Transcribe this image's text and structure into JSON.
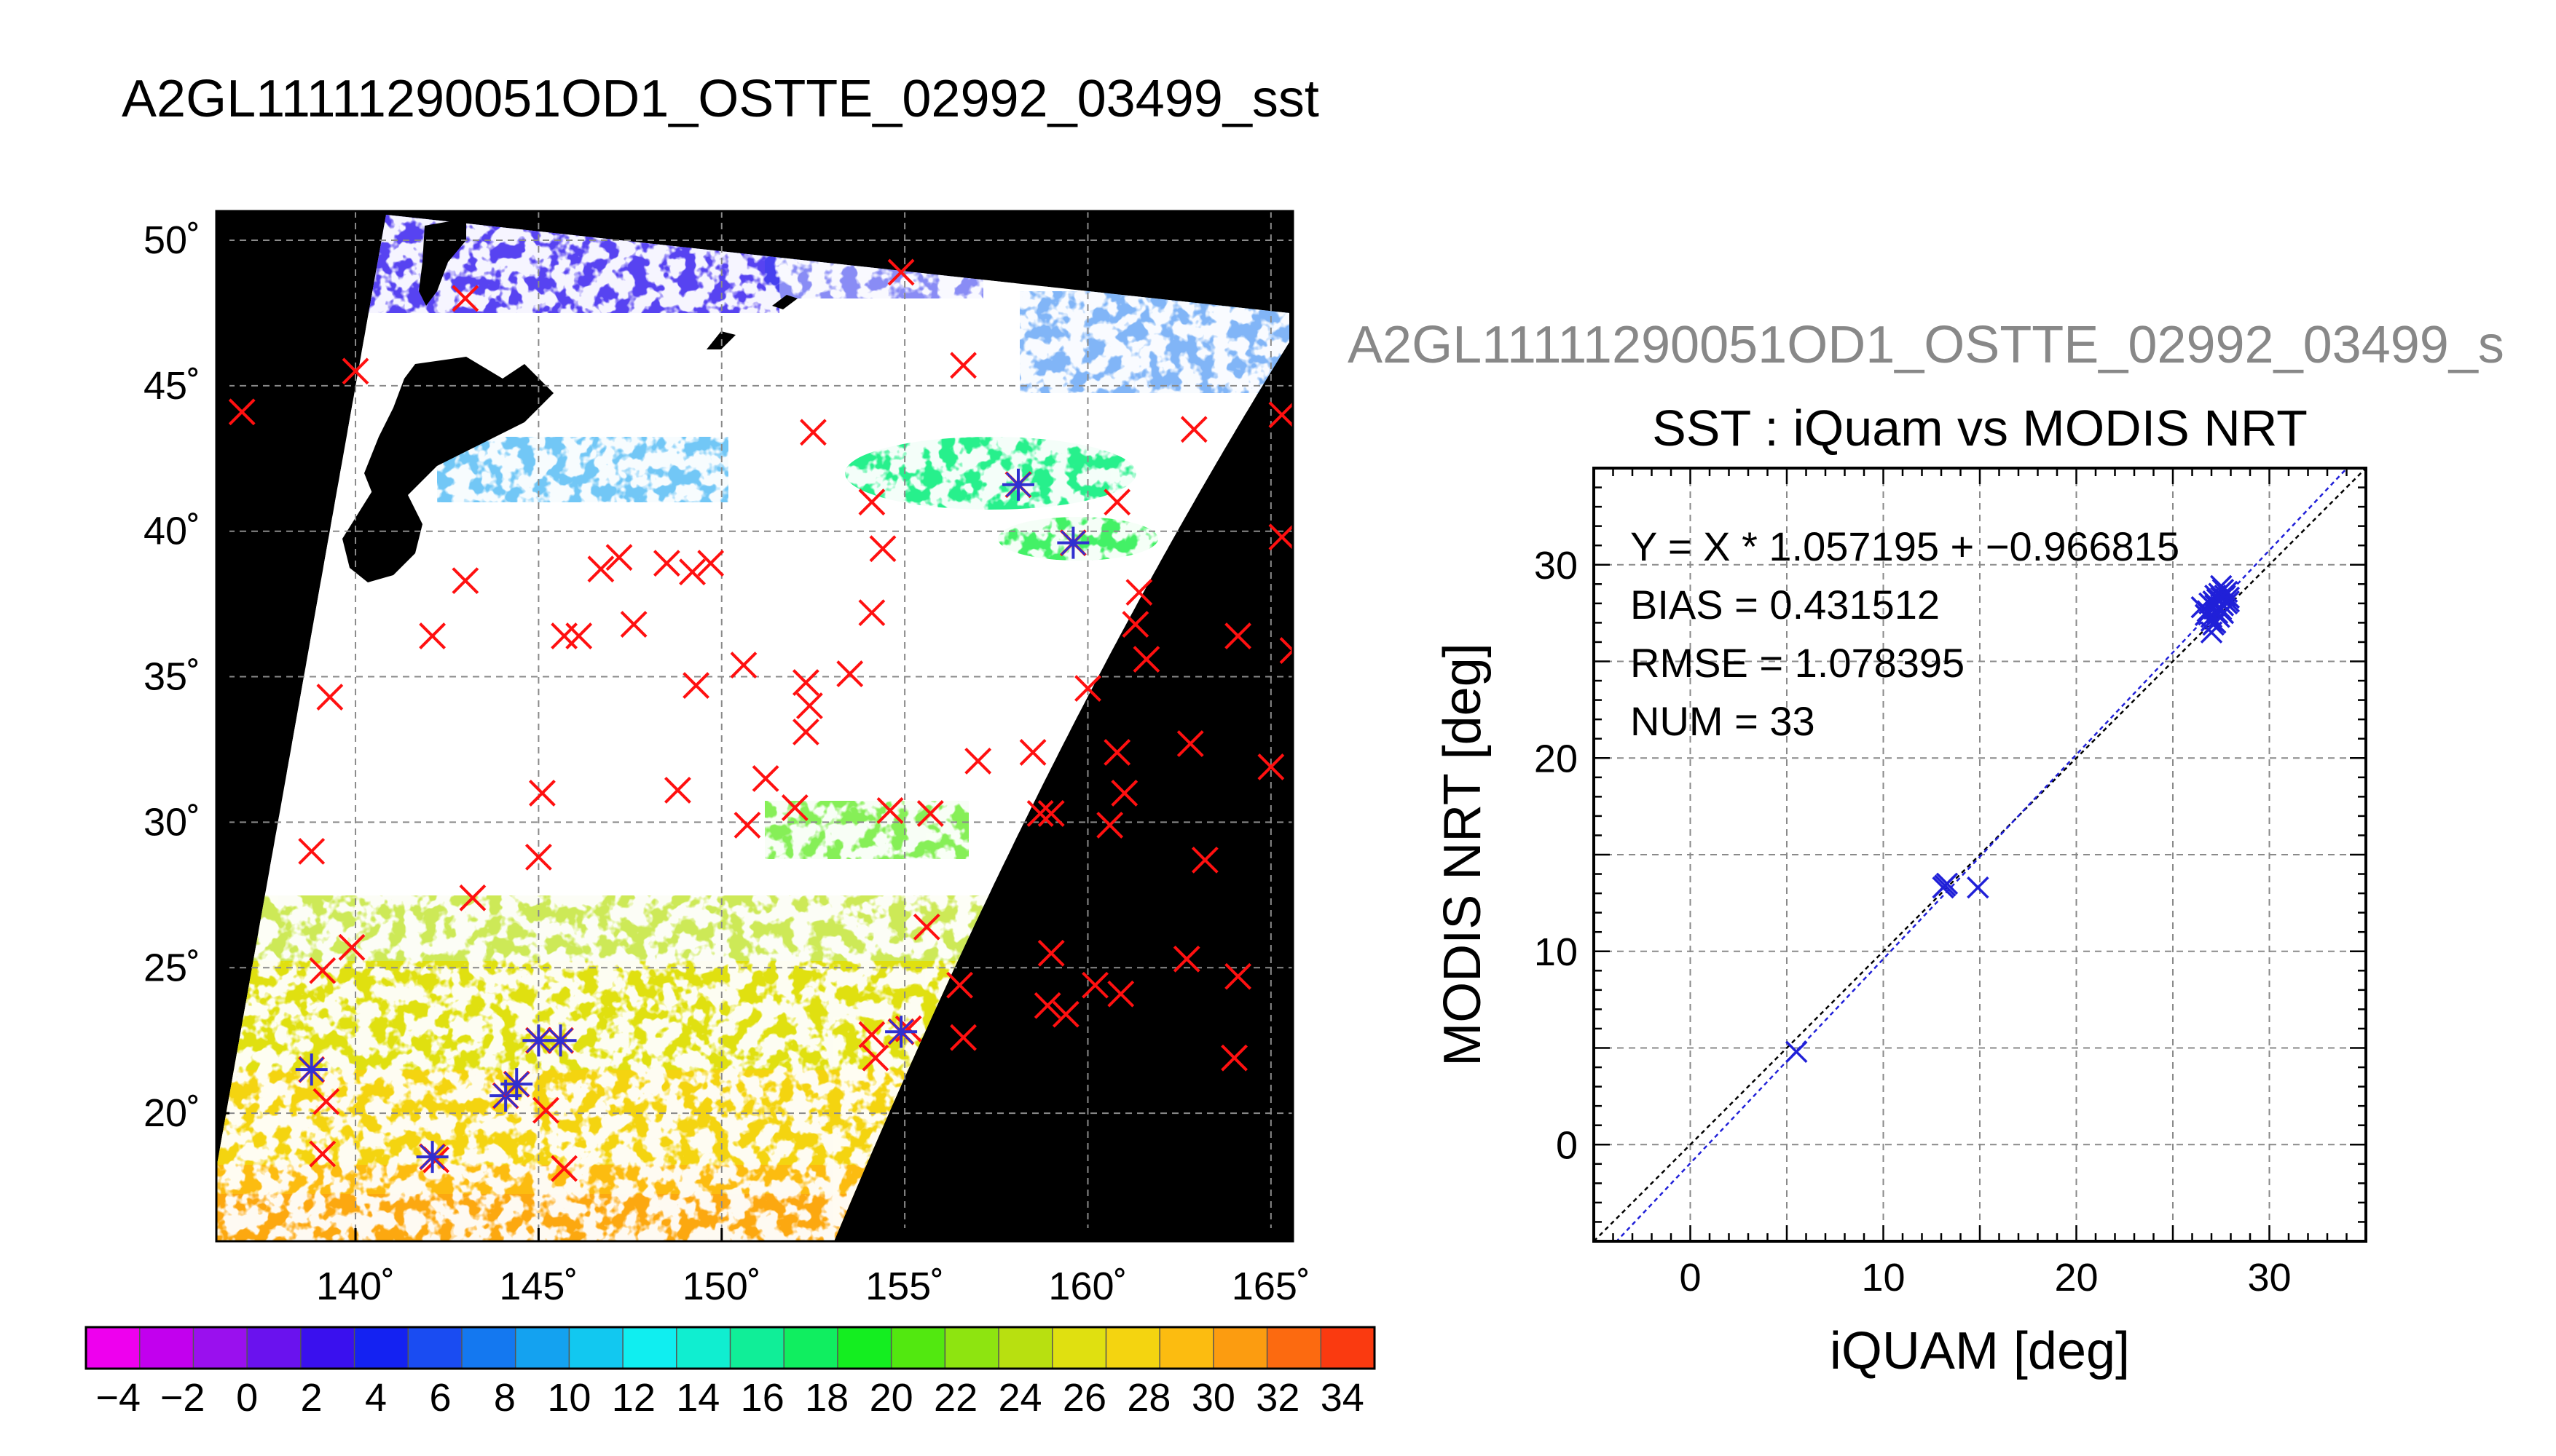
{
  "title": "A2GL11111290051OD1_OSTTE_02992_03499_sst",
  "subtitle": "A2GL11111290051OD1_OSTTE_02992_03499_s",
  "map": {
    "lat_ticks": [
      50,
      45,
      40,
      35,
      30,
      25,
      20
    ],
    "lon_ticks": [
      140,
      145,
      150,
      155,
      160,
      165
    ],
    "lon_range": [
      136.2,
      165.6
    ],
    "lat_range": [
      15.6,
      51.0
    ],
    "grid": true,
    "degree_symbol": "˚",
    "colors": {
      "background": "#000000",
      "cloud": "#ffffff",
      "land": "#000000",
      "matchup_marker": "#ff1010",
      "valid_marker": "#3030d0"
    },
    "matchups_red": [
      [
        136.9,
        44.1
      ],
      [
        140.0,
        45.5
      ],
      [
        143.0,
        48.0
      ],
      [
        154.9,
        48.9
      ],
      [
        156.6,
        45.7
      ],
      [
        152.5,
        43.4
      ],
      [
        162.9,
        43.5
      ],
      [
        165.3,
        44.0
      ],
      [
        154.1,
        41.0
      ],
      [
        160.8,
        41.0
      ],
      [
        165.3,
        39.8
      ],
      [
        147.2,
        39.1
      ],
      [
        146.7,
        38.7
      ],
      [
        148.5,
        38.9
      ],
      [
        149.2,
        38.6
      ],
      [
        149.7,
        38.9
      ],
      [
        154.4,
        39.4
      ],
      [
        143.0,
        38.3
      ],
      [
        142.1,
        36.4
      ],
      [
        145.7,
        36.4
      ],
      [
        146.1,
        36.4
      ],
      [
        147.6,
        36.8
      ],
      [
        154.1,
        37.2
      ],
      [
        161.4,
        37.9
      ],
      [
        161.3,
        36.8
      ],
      [
        161.6,
        35.6
      ],
      [
        164.1,
        36.4
      ],
      [
        165.6,
        35.9
      ],
      [
        139.3,
        34.3
      ],
      [
        149.3,
        34.7
      ],
      [
        150.6,
        35.4
      ],
      [
        152.3,
        34.8
      ],
      [
        152.4,
        34.0
      ],
      [
        153.5,
        35.1
      ],
      [
        160.0,
        34.6
      ],
      [
        152.3,
        33.1
      ],
      [
        157.0,
        32.1
      ],
      [
        158.5,
        32.4
      ],
      [
        160.8,
        32.4
      ],
      [
        162.8,
        32.7
      ],
      [
        165.0,
        31.9
      ],
      [
        148.8,
        31.1
      ],
      [
        151.2,
        31.5
      ],
      [
        145.1,
        31.0
      ],
      [
        161.0,
        31.0
      ],
      [
        152.0,
        30.5
      ],
      [
        150.7,
        29.9
      ],
      [
        154.6,
        30.4
      ],
      [
        155.7,
        30.3
      ],
      [
        158.7,
        30.3
      ],
      [
        159.0,
        30.3
      ],
      [
        160.6,
        29.9
      ],
      [
        138.8,
        29.0
      ],
      [
        145.0,
        28.8
      ],
      [
        163.2,
        28.7
      ],
      [
        143.2,
        27.4
      ],
      [
        155.6,
        26.4
      ],
      [
        139.9,
        25.7
      ],
      [
        139.1,
        24.9
      ],
      [
        159.0,
        25.5
      ],
      [
        162.7,
        25.3
      ],
      [
        164.1,
        24.7
      ],
      [
        156.5,
        24.4
      ],
      [
        160.2,
        24.4
      ],
      [
        160.9,
        24.1
      ],
      [
        158.9,
        23.7
      ],
      [
        159.4,
        23.4
      ],
      [
        154.1,
        22.7
      ],
      [
        154.2,
        21.9
      ],
      [
        156.6,
        22.6
      ],
      [
        155.1,
        22.9
      ],
      [
        164.0,
        21.9
      ],
      [
        139.2,
        20.4
      ],
      [
        145.2,
        20.1
      ],
      [
        139.1,
        18.6
      ],
      [
        145.7,
        18.1
      ],
      [
        142.2,
        18.4
      ]
    ],
    "matchups_valid": [
      [
        158.1,
        41.6
      ],
      [
        159.6,
        39.6
      ],
      [
        138.8,
        21.5
      ],
      [
        144.1,
        20.6
      ],
      [
        144.4,
        21.0
      ],
      [
        145.0,
        22.5
      ],
      [
        145.6,
        22.5
      ],
      [
        154.9,
        22.8
      ],
      [
        142.1,
        18.5
      ]
    ]
  },
  "colorbar": {
    "tick_labels": [
      "−4",
      "−2",
      "0",
      "2",
      "4",
      "6",
      "8",
      "10",
      "12",
      "14",
      "16",
      "18",
      "20",
      "22",
      "24",
      "26",
      "28",
      "30",
      "32",
      "34"
    ],
    "range": [
      -5,
      35
    ],
    "colors": [
      "#ee00ee",
      "#c200ee",
      "#9a10ee",
      "#6a12ee",
      "#3a10ee",
      "#1422f2",
      "#1a4cf2",
      "#1478f0",
      "#14a2f0",
      "#12c8f0",
      "#10eef0",
      "#10eed0",
      "#10ee98",
      "#10ee60",
      "#14ee20",
      "#52e810",
      "#8ee410",
      "#b8e010",
      "#e0e010",
      "#f4d410",
      "#fcbc10",
      "#fc9c10",
      "#fc6a10",
      "#fa3a10"
    ]
  },
  "chart_data": {
    "type": "scatter",
    "title": "SST : iQuam vs MODIS NRT",
    "xlabel": "iQUAM [deg]",
    "ylabel": "MODIS NRT [deg]",
    "xlim": [
      -5,
      35
    ],
    "ylim": [
      -5,
      35
    ],
    "x_ticks": [
      0,
      10,
      20,
      30
    ],
    "y_ticks": [
      0,
      10,
      20,
      30
    ],
    "grid": true,
    "stats": [
      "Y = X * 1.057195 + −0.966815",
      "BIAS = 0.431512",
      "RMSE = 1.078395",
      "NUM = 33"
    ],
    "fit": {
      "slope": 1.057195,
      "intercept": -0.966815
    },
    "colors": {
      "points": "#2020d8",
      "fit_line": "#2020d8",
      "identity_line": "#000000"
    },
    "points": [
      [
        5.5,
        4.8
      ],
      [
        13.1,
        13.3
      ],
      [
        13.3,
        13.5
      ],
      [
        13.2,
        13.4
      ],
      [
        14.9,
        13.3
      ],
      [
        26.5,
        27.8
      ],
      [
        26.8,
        27.6
      ],
      [
        27.0,
        27.3
      ],
      [
        27.2,
        27.9
      ],
      [
        27.3,
        28.2
      ],
      [
        27.4,
        28.5
      ],
      [
        27.6,
        28.7
      ],
      [
        27.5,
        27.7
      ],
      [
        27.8,
        28.0
      ],
      [
        27.9,
        28.3
      ],
      [
        27.0,
        26.5
      ],
      [
        27.1,
        26.9
      ],
      [
        27.4,
        27.3
      ],
      [
        27.6,
        27.5
      ],
      [
        27.2,
        27.0
      ],
      [
        27.7,
        28.4
      ],
      [
        26.9,
        28.0
      ],
      [
        27.1,
        28.1
      ],
      [
        27.5,
        28.9
      ],
      [
        27.3,
        27.5
      ],
      [
        27.0,
        27.1
      ],
      [
        27.8,
        28.6
      ],
      [
        26.7,
        27.4
      ],
      [
        27.4,
        27.8
      ],
      [
        27.6,
        27.9
      ],
      [
        27.2,
        28.4
      ],
      [
        27.9,
        28.1
      ],
      [
        27.5,
        28.3
      ]
    ]
  }
}
